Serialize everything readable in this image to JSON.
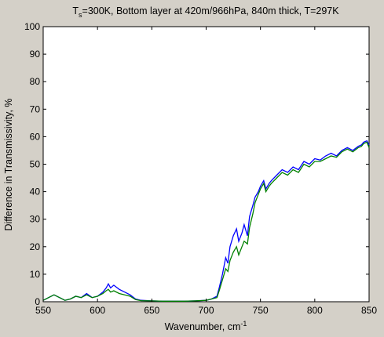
{
  "chart_data": {
    "type": "line",
    "title_main": "T",
    "title_sub": "s",
    "title_rest": "=300K, Bottom layer at 420m/966hPa, 840m thick, T=297K",
    "xlabel_main": "Wavenumber, cm",
    "xlabel_sup": "-1",
    "ylabel": "Difference in Transmissivity, %",
    "xlim": [
      550,
      850
    ],
    "ylim": [
      0,
      100
    ],
    "xticks": [
      550,
      600,
      650,
      700,
      750,
      800,
      850
    ],
    "yticks": [
      0,
      10,
      20,
      30,
      40,
      50,
      60,
      70,
      80,
      90,
      100
    ],
    "grid": false,
    "series": [
      {
        "color": "#0000ff",
        "x": [
          550,
          555,
          560,
          565,
          570,
          575,
          580,
          585,
          590,
          595,
          600,
          605,
          608,
          610,
          612,
          615,
          620,
          625,
          630,
          635,
          640,
          650,
          660,
          670,
          680,
          690,
          700,
          705,
          710,
          712,
          715,
          718,
          720,
          722,
          725,
          728,
          730,
          733,
          735,
          738,
          740,
          743,
          745,
          748,
          750,
          753,
          755,
          758,
          760,
          765,
          770,
          775,
          780,
          785,
          790,
          795,
          800,
          805,
          810,
          815,
          820,
          825,
          830,
          835,
          840,
          843,
          845,
          848,
          850
        ],
        "y": [
          0.5,
          1.5,
          2.5,
          1.5,
          0.5,
          1.0,
          2.0,
          1.5,
          3.0,
          1.5,
          2.0,
          3.5,
          5.0,
          6.5,
          5.0,
          6.0,
          4.5,
          3.5,
          2.5,
          1.0,
          0.5,
          0.3,
          0.2,
          0.2,
          0.2,
          0.3,
          0.5,
          1.0,
          2.0,
          5.0,
          10.0,
          16.0,
          14.0,
          20.0,
          24.0,
          26.5,
          22.0,
          25.0,
          28.0,
          24.0,
          31.0,
          35.0,
          38.0,
          40.0,
          42.0,
          44.0,
          41.0,
          43.0,
          44.0,
          46.0,
          48.0,
          47.0,
          49.0,
          48.0,
          51.0,
          50.0,
          52.0,
          51.5,
          53.0,
          54.0,
          53.0,
          55.0,
          56.0,
          55.0,
          56.5,
          57.0,
          58.0,
          58.5,
          57.0
        ]
      },
      {
        "color": "#008000",
        "x": [
          550,
          555,
          560,
          565,
          570,
          575,
          580,
          585,
          590,
          595,
          600,
          605,
          608,
          610,
          612,
          615,
          620,
          625,
          630,
          635,
          640,
          650,
          660,
          670,
          680,
          690,
          700,
          705,
          710,
          712,
          715,
          718,
          720,
          722,
          725,
          728,
          730,
          733,
          735,
          738,
          740,
          743,
          745,
          748,
          750,
          753,
          755,
          758,
          760,
          765,
          770,
          775,
          780,
          785,
          790,
          795,
          800,
          805,
          810,
          815,
          820,
          825,
          830,
          835,
          840,
          843,
          845,
          848,
          850
        ],
        "y": [
          0.5,
          1.5,
          2.5,
          1.5,
          0.5,
          1.0,
          2.0,
          1.5,
          2.5,
          1.5,
          2.0,
          3.0,
          4.0,
          4.5,
          3.5,
          4.0,
          3.0,
          2.5,
          2.0,
          0.8,
          0.4,
          0.3,
          0.2,
          0.2,
          0.2,
          0.3,
          0.5,
          1.0,
          1.5,
          4.0,
          8.0,
          12.0,
          11.0,
          15.0,
          18.0,
          20.0,
          17.0,
          20.0,
          22.0,
          21.0,
          27.0,
          32.0,
          36.0,
          39.0,
          41.0,
          43.0,
          40.0,
          42.0,
          43.0,
          45.0,
          47.0,
          46.0,
          48.0,
          47.0,
          50.0,
          49.0,
          51.0,
          51.0,
          52.0,
          53.0,
          52.5,
          54.5,
          55.5,
          54.5,
          56.0,
          56.5,
          57.5,
          58.0,
          56.0
        ]
      }
    ]
  }
}
